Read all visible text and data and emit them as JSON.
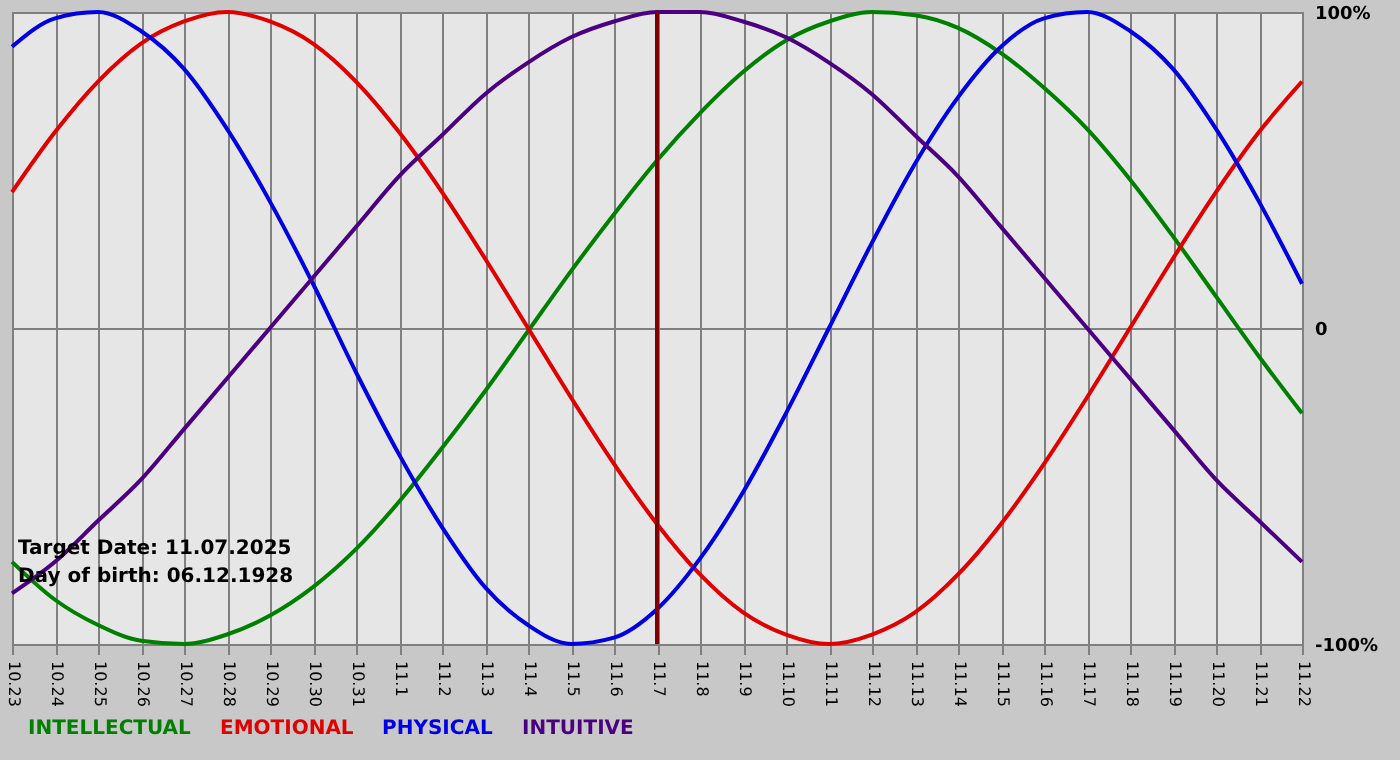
{
  "chart_data": {
    "type": "line",
    "categories": [
      "10.23",
      "10.24",
      "10.25",
      "10.26",
      "10.27",
      "10.28",
      "10.29",
      "10.30",
      "10.31",
      "11.1",
      "11.2",
      "11.3",
      "11.4",
      "11.5",
      "11.6",
      "11.7",
      "11.8",
      "11.9",
      "11.10",
      "11.11",
      "11.12",
      "11.13",
      "11.14",
      "11.15",
      "11.16",
      "11.17",
      "11.18",
      "11.19",
      "11.20",
      "11.21",
      "11.22"
    ],
    "series": [
      {
        "name": "INTELLECTUAL",
        "color": "#008000",
        "values": [
          -74,
          -86,
          -94,
          -99,
          -100,
          -97,
          -91,
          -82,
          -70,
          -55,
          -38,
          -20,
          -1,
          18,
          36,
          53,
          68,
          81,
          91,
          97,
          100,
          99,
          95,
          87,
          76,
          63,
          47,
          29,
          10,
          -9,
          -27
        ]
      },
      {
        "name": "EMOTIONAL",
        "color": "#e00000",
        "values": [
          43,
          62,
          78,
          90,
          97,
          100,
          97,
          90,
          78,
          62,
          43,
          22,
          0,
          -22,
          -43,
          -62,
          -78,
          -90,
          -97,
          -100,
          -97,
          -90,
          -78,
          -62,
          -43,
          -22,
          0,
          22,
          43,
          62,
          78
        ]
      },
      {
        "name": "PHYSICAL",
        "color": "#0000e0",
        "values": [
          89,
          98,
          100,
          94,
          82,
          63,
          40,
          14,
          -14,
          -40,
          -63,
          -82,
          -94,
          -100,
          -98,
          -89,
          -73,
          -52,
          -27,
          0,
          27,
          52,
          73,
          89,
          98,
          100,
          94,
          82,
          63,
          40,
          14
        ]
      },
      {
        "name": "INTUITIVE",
        "color": "#4b0082",
        "values": [
          -84,
          -74,
          -61,
          -48,
          -32,
          -16,
          0,
          16,
          32,
          48,
          61,
          74,
          84,
          92,
          97,
          100,
          100,
          97,
          92,
          84,
          74,
          61,
          48,
          32,
          16,
          0,
          -16,
          -32,
          -48,
          -61,
          -74
        ]
      }
    ],
    "ylim": [
      -100,
      100
    ],
    "yticks": [
      {
        "value": -100,
        "label": "-100%"
      },
      0,
      {
        "value": 100,
        "label": "100%"
      }
    ],
    "grid": true,
    "legend": "bottom left",
    "ref_lines": [
      {
        "axis": "x",
        "value": "11.7",
        "color": "#800000"
      }
    ],
    "annotations": [
      "Target Date: 11.07.2025",
      "Day of birth: 06.12.1928"
    ]
  }
}
